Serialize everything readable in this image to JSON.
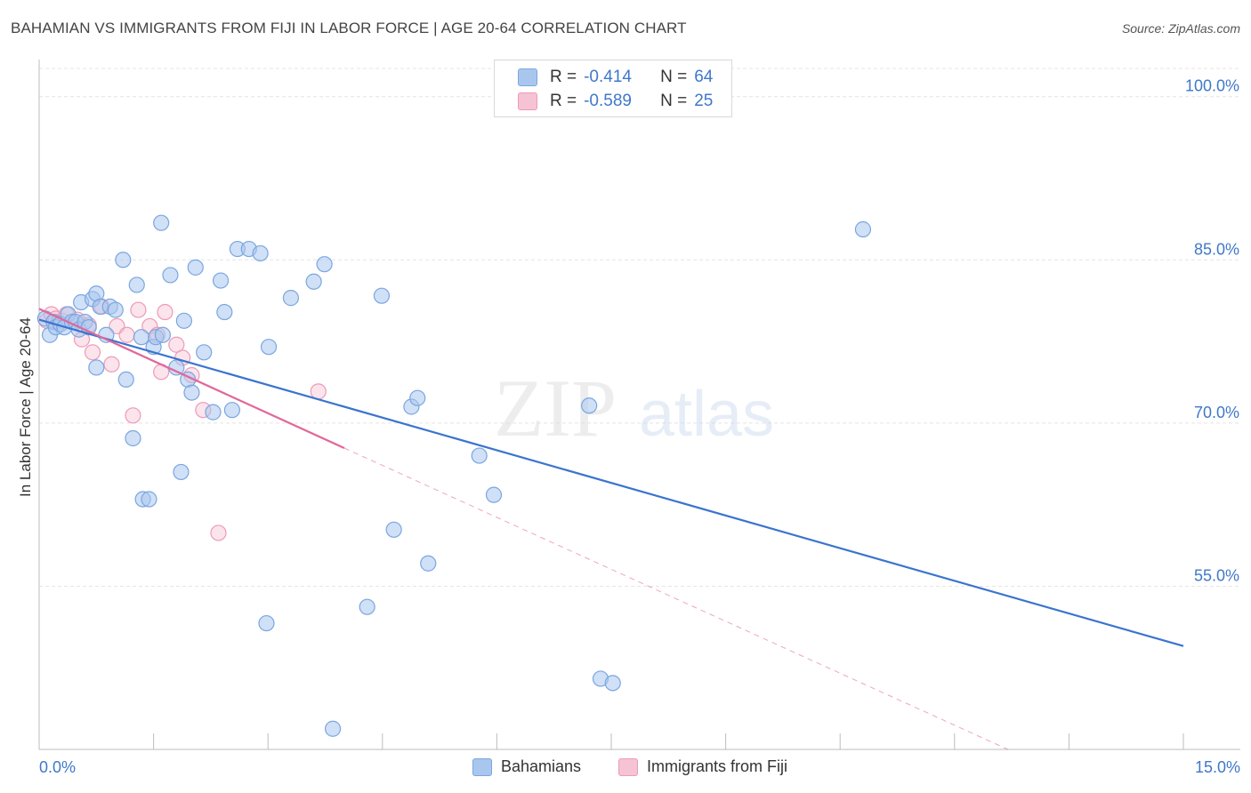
{
  "header": {
    "title": "BAHAMIAN VS IMMIGRANTS FROM FIJI IN LABOR FORCE | AGE 20-64 CORRELATION CHART",
    "source": "Source: ZipAtlas.com"
  },
  "watermark": {
    "zip": "ZIP",
    "atlas": "atlas"
  },
  "legend": {
    "r_label": "R =",
    "n_label": "N =",
    "entries": [
      {
        "r": "-0.414",
        "n": "64"
      },
      {
        "r": "-0.589",
        "n": "25"
      }
    ]
  },
  "colors": {
    "blue_fill": "#a9c7ee",
    "blue_stroke": "#7aa6e0",
    "blue_line": "#3a74cf",
    "pink_fill": "#f6c3d4",
    "pink_stroke": "#ee9ab6",
    "pink_line": "#e2679a",
    "grid": "#e4e4e4",
    "axis_text": "#3f78c9"
  },
  "chart_data": {
    "type": "scatter",
    "title": "BAHAMIAN VS IMMIGRANTS FROM FIJI IN LABOR FORCE | AGE 20-64 CORRELATION CHART",
    "xlabel": "",
    "ylabel": "In Labor Force | Age 20-64",
    "xlim": [
      0,
      15
    ],
    "ylim": [
      40,
      103
    ],
    "x_tick_labels": [
      "0.0%",
      "15.0%"
    ],
    "y_ticks": [
      55,
      70,
      85,
      100
    ],
    "y_tick_labels": [
      "55.0%",
      "70.0%",
      "85.0%",
      "100.0%"
    ],
    "grid": true,
    "legend_position": "bottom",
    "series": [
      {
        "name": "Bahamians",
        "color": "blue",
        "points": [
          [
            0.08,
            79.6
          ],
          [
            0.14,
            78.1
          ],
          [
            0.19,
            79.3
          ],
          [
            0.22,
            78.8
          ],
          [
            0.28,
            79.1
          ],
          [
            0.33,
            78.8
          ],
          [
            0.38,
            80.0
          ],
          [
            0.43,
            79.3
          ],
          [
            0.48,
            79.3
          ],
          [
            0.52,
            78.6
          ],
          [
            0.55,
            81.1
          ],
          [
            0.6,
            79.3
          ],
          [
            0.65,
            78.8
          ],
          [
            0.7,
            81.4
          ],
          [
            0.75,
            81.9
          ],
          [
            0.75,
            75.1
          ],
          [
            0.8,
            80.7
          ],
          [
            0.88,
            78.1
          ],
          [
            0.93,
            80.7
          ],
          [
            1.0,
            80.4
          ],
          [
            1.1,
            85.0
          ],
          [
            1.14,
            74.0
          ],
          [
            1.23,
            68.6
          ],
          [
            1.28,
            82.7
          ],
          [
            1.34,
            77.9
          ],
          [
            1.36,
            63.0
          ],
          [
            1.44,
            63.0
          ],
          [
            1.5,
            77.0
          ],
          [
            1.53,
            77.9
          ],
          [
            1.6,
            88.4
          ],
          [
            1.62,
            78.1
          ],
          [
            1.72,
            83.6
          ],
          [
            1.8,
            75.1
          ],
          [
            1.86,
            65.5
          ],
          [
            1.9,
            79.4
          ],
          [
            1.95,
            74.0
          ],
          [
            2.0,
            72.8
          ],
          [
            2.05,
            84.3
          ],
          [
            2.16,
            76.5
          ],
          [
            2.28,
            71.0
          ],
          [
            2.38,
            83.1
          ],
          [
            2.43,
            80.2
          ],
          [
            2.53,
            71.2
          ],
          [
            2.6,
            86.0
          ],
          [
            2.75,
            86.0
          ],
          [
            2.9,
            85.6
          ],
          [
            2.98,
            51.6
          ],
          [
            3.01,
            77.0
          ],
          [
            3.3,
            81.5
          ],
          [
            3.6,
            83.0
          ],
          [
            3.74,
            84.6
          ],
          [
            3.85,
            41.9
          ],
          [
            4.3,
            53.1
          ],
          [
            4.49,
            81.7
          ],
          [
            4.65,
            60.2
          ],
          [
            4.88,
            71.5
          ],
          [
            4.96,
            72.3
          ],
          [
            5.1,
            57.1
          ],
          [
            5.77,
            67.0
          ],
          [
            5.96,
            63.4
          ],
          [
            7.21,
            71.6
          ],
          [
            7.36,
            46.5
          ],
          [
            7.52,
            46.1
          ],
          [
            10.8,
            87.8
          ]
        ]
      },
      {
        "name": "Immigrants from Fiji",
        "color": "pink",
        "points": [
          [
            0.1,
            79.4
          ],
          [
            0.16,
            80.0
          ],
          [
            0.22,
            79.6
          ],
          [
            0.3,
            79.4
          ],
          [
            0.36,
            80.0
          ],
          [
            0.5,
            79.5
          ],
          [
            0.56,
            77.7
          ],
          [
            0.65,
            79.0
          ],
          [
            0.7,
            76.5
          ],
          [
            0.82,
            80.7
          ],
          [
            0.95,
            75.4
          ],
          [
            1.02,
            78.9
          ],
          [
            1.15,
            78.1
          ],
          [
            1.23,
            70.7
          ],
          [
            1.3,
            80.4
          ],
          [
            1.45,
            78.9
          ],
          [
            1.55,
            78.1
          ],
          [
            1.6,
            74.7
          ],
          [
            1.65,
            80.2
          ],
          [
            1.8,
            77.2
          ],
          [
            1.88,
            76.0
          ],
          [
            2.0,
            74.4
          ],
          [
            2.15,
            71.2
          ],
          [
            2.35,
            59.9
          ],
          [
            3.66,
            72.9
          ]
        ]
      }
    ],
    "trendlines": [
      {
        "series": "Bahamians",
        "x": [
          0,
          15
        ],
        "y": [
          79.5,
          49.5
        ],
        "style": "solid"
      },
      {
        "series": "Immigrants from Fiji",
        "x": [
          0,
          4.0
        ],
        "y": [
          80.5,
          67.7
        ],
        "style": "solid"
      },
      {
        "series": "Immigrants from Fiji",
        "x": [
          4.0,
          12.7
        ],
        "y": [
          67.7,
          40.0
        ],
        "style": "dashed"
      }
    ]
  }
}
